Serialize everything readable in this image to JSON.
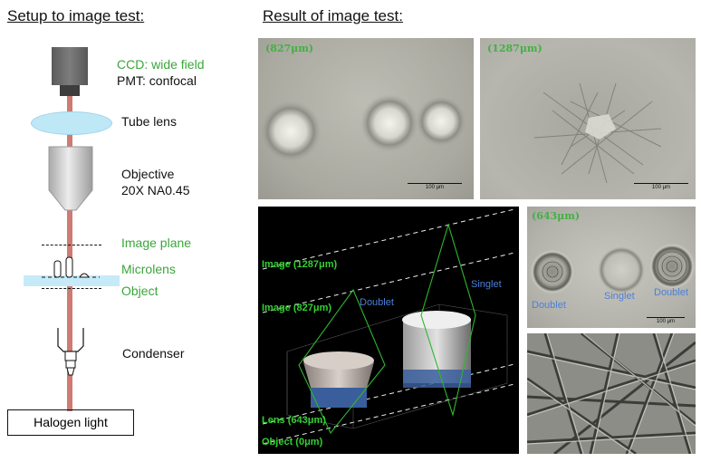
{
  "setup": {
    "title": "Setup to image test:",
    "ccd_label": "CCD: wide field",
    "pmt_label": "PMT: confocal",
    "tube_lens_label": "Tube lens",
    "objective_label": "Objective",
    "objective_spec": "20X NA0.45",
    "image_plane_label": "Image plane",
    "microlens_label": "Microlens",
    "object_label": "Object",
    "condenser_label": "Condenser",
    "halogen_label": "Halogen light"
  },
  "result": {
    "title": "Result of image test:",
    "panel_827": {
      "tag": "(827μm)",
      "scale": "100 μm"
    },
    "panel_1287": {
      "tag": "(1287μm)",
      "scale": "100 μm"
    },
    "panel_643": {
      "tag": "(643μm)",
      "scale": "100 μm",
      "labels": [
        "Doublet",
        "Singlet",
        "Doublet"
      ]
    },
    "plot3d": {
      "image_1287": "Image (1287μm)",
      "image_827": "Image (827μm)",
      "lens_643": "Lens (643μm)",
      "object_0": "Object (0μm)",
      "doublet": "Doublet",
      "singlet": "Singlet"
    }
  },
  "colors": {
    "beam": "#cd7b73",
    "label_green": "#3aa63a",
    "lens_blue": "#bfe8f7",
    "doublet_blue": "#4d7fd8"
  }
}
